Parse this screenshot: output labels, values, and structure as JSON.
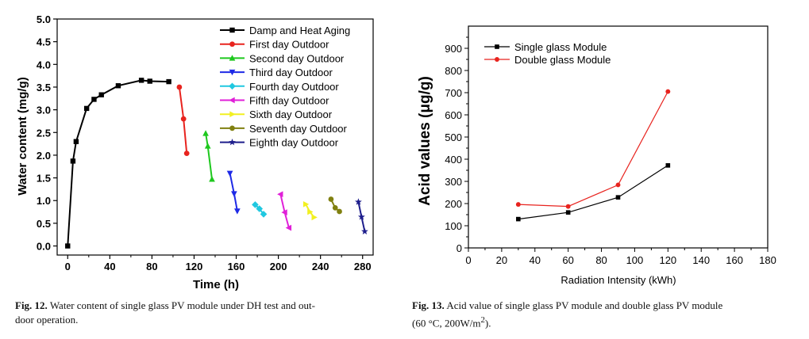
{
  "chart_data": [
    {
      "type": "line",
      "title": "",
      "xlabel": "Time  (h)",
      "ylabel": "Water content  (mg/g)",
      "xlim": [
        -10,
        290
      ],
      "ylim": [
        -0.2,
        5.0
      ],
      "xticks": [
        "0",
        "40",
        "80",
        "120",
        "160",
        "200",
        "240",
        "280"
      ],
      "yticks": [
        "0.0",
        "0.5",
        "1.0",
        "1.5",
        "2.0",
        "2.5",
        "3.0",
        "3.5",
        "4.0",
        "4.5",
        "5.0"
      ],
      "legend_position": "top-right",
      "series": [
        {
          "name": "Damp and Heat Aging",
          "color": "#000000",
          "marker": "square",
          "x": [
            0,
            5,
            8,
            18,
            25,
            32,
            48,
            70,
            78,
            96
          ],
          "y": [
            0.0,
            1.87,
            2.3,
            3.03,
            3.23,
            3.33,
            3.53,
            3.65,
            3.63,
            3.62
          ]
        },
        {
          "name": "First day Outdoor",
          "color": "#e8231e",
          "marker": "circle",
          "x": [
            106,
            110,
            113
          ],
          "y": [
            3.5,
            2.8,
            2.04
          ]
        },
        {
          "name": "Second day Outdoor",
          "color": "#1ec81e",
          "marker": "triangle-up",
          "x": [
            131,
            133,
            137
          ],
          "y": [
            2.48,
            2.2,
            1.47
          ]
        },
        {
          "name": "Third day Outdoor",
          "color": "#1e2ae6",
          "marker": "triangle-down",
          "x": [
            154,
            158,
            161
          ],
          "y": [
            1.6,
            1.15,
            0.77
          ]
        },
        {
          "name": "Fourth day Outdoor",
          "color": "#20c8e0",
          "marker": "diamond",
          "x": [
            178,
            182,
            186
          ],
          "y": [
            0.91,
            0.82,
            0.7
          ]
        },
        {
          "name": "Fifth day Outdoor",
          "color": "#e020d8",
          "marker": "triangle-left",
          "x": [
            202,
            206,
            210
          ],
          "y": [
            1.14,
            0.74,
            0.4
          ]
        },
        {
          "name": "Sixth day Outdoor",
          "color": "#f2f020",
          "marker": "triangle-right",
          "x": [
            226,
            230,
            234
          ],
          "y": [
            0.92,
            0.75,
            0.63
          ]
        },
        {
          "name": "Seventh day Outdoor",
          "color": "#808010",
          "marker": "circle",
          "x": [
            250,
            254,
            258
          ],
          "y": [
            1.03,
            0.84,
            0.76
          ]
        },
        {
          "name": "Eighth day Outdoor",
          "color": "#1e1e8c",
          "marker": "star",
          "x": [
            276,
            279,
            282
          ],
          "y": [
            0.97,
            0.64,
            0.32
          ]
        }
      ],
      "caption_label": "Fig. 12.",
      "caption_text": "Water content of single glass PV module under DH test and out-",
      "caption_text2": "door operation."
    },
    {
      "type": "line",
      "title": "",
      "xlabel": "Radiation Intensity (kWh)",
      "ylabel": "Acid values (μg/g)",
      "xlim": [
        0,
        180
      ],
      "ylim": [
        0,
        1000
      ],
      "xticks": [
        "0",
        "20",
        "40",
        "60",
        "80",
        "100",
        "120",
        "140",
        "160",
        "180"
      ],
      "yticks": [
        "0",
        "100",
        "200",
        "300",
        "400",
        "500",
        "600",
        "700",
        "800",
        "900"
      ],
      "legend_position": "top-left",
      "series": [
        {
          "name": "Single glass Module",
          "color": "#000000",
          "marker": "square",
          "x": [
            30,
            60,
            90,
            120
          ],
          "y": [
            130,
            160,
            228,
            372
          ]
        },
        {
          "name": "Double glass Module",
          "color": "#e8231e",
          "marker": "circle",
          "x": [
            30,
            60,
            90,
            120
          ],
          "y": [
            196,
            187,
            284,
            705
          ]
        }
      ],
      "caption_label": "Fig. 13.",
      "caption_text": "Acid value of single glass PV module and double glass PV module",
      "caption_text2": "(60 °C, 200W/m",
      "caption_sup": "2",
      "caption_end": ")."
    }
  ]
}
